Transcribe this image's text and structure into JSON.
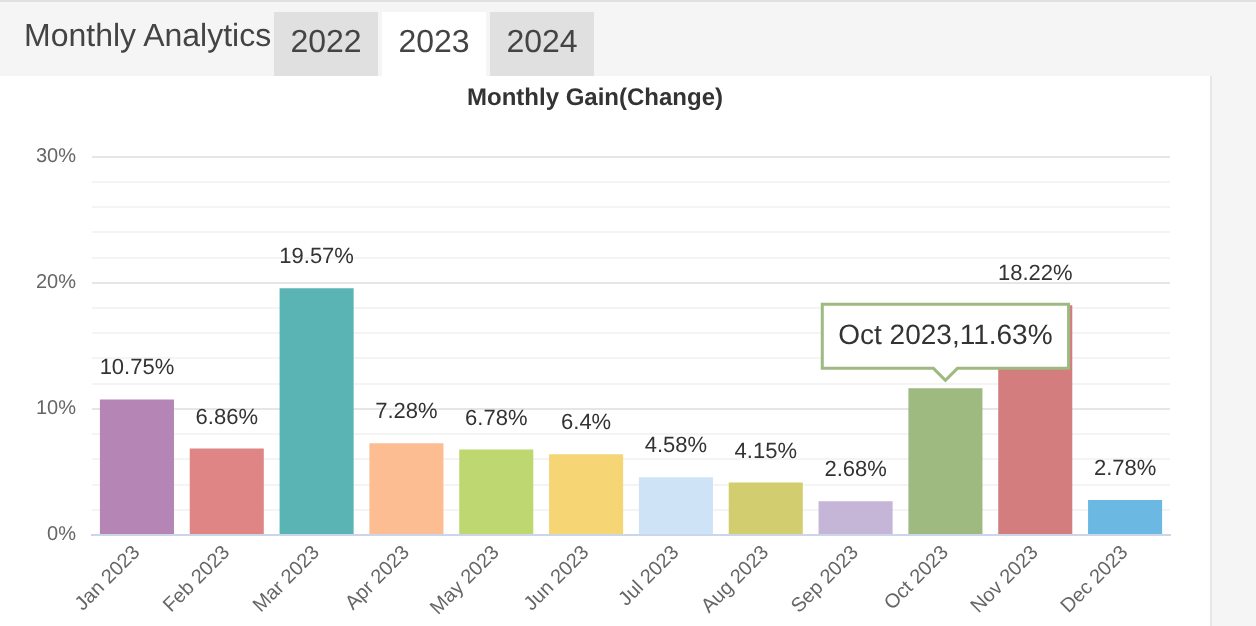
{
  "chart_data": {
    "type": "bar",
    "title": "Monthly Gain(Change)",
    "categories": [
      "Jan 2023",
      "Feb 2023",
      "Mar 2023",
      "Apr 2023",
      "May 2023",
      "Jun 2023",
      "Jul 2023",
      "Aug 2023",
      "Sep 2023",
      "Oct 2023",
      "Nov 2023",
      "Dec 2023"
    ],
    "values": [
      10.75,
      6.86,
      19.57,
      7.28,
      6.78,
      6.4,
      4.58,
      4.15,
      2.68,
      11.63,
      18.22,
      2.78
    ],
    "value_labels": [
      "10.75%",
      "6.86%",
      "19.57%",
      "7.28%",
      "6.78%",
      "6.4%",
      "4.58%",
      "4.15%",
      "2.68%",
      null,
      "18.22%",
      "2.78%"
    ],
    "colors": [
      "#b585b5",
      "#e08585",
      "#5bb4b4",
      "#fdbd93",
      "#bfd770",
      "#f6d574",
      "#cfe3f6",
      "#d2cd6e",
      "#c5b5d6",
      "#9eba81",
      "#d47d7f",
      "#6bb9e3"
    ],
    "ylim": [
      0,
      30
    ],
    "yticks": [
      {
        "value": 0,
        "label": "0%"
      },
      {
        "value": 2,
        "label": null
      },
      {
        "value": 4,
        "label": null
      },
      {
        "value": 6,
        "label": null
      },
      {
        "value": 8,
        "label": null
      },
      {
        "value": 10,
        "label": "10%"
      },
      {
        "value": 12,
        "label": null
      },
      {
        "value": 14,
        "label": null
      },
      {
        "value": 16,
        "label": null
      },
      {
        "value": 18,
        "label": null
      },
      {
        "value": 20,
        "label": "20%"
      },
      {
        "value": 22,
        "label": null
      },
      {
        "value": 24,
        "label": null
      },
      {
        "value": 26,
        "label": null
      },
      {
        "value": 28,
        "label": null
      },
      {
        "value": 30,
        "label": "30%"
      }
    ],
    "grid": "y",
    "legend": false,
    "annotations": [
      "Monthly Analytics",
      "2022",
      "2023",
      "2024",
      {
        "text": "Oct 2023,11.63%",
        "x": "Oct 2023",
        "y": 11.63
      }
    ]
  }
}
